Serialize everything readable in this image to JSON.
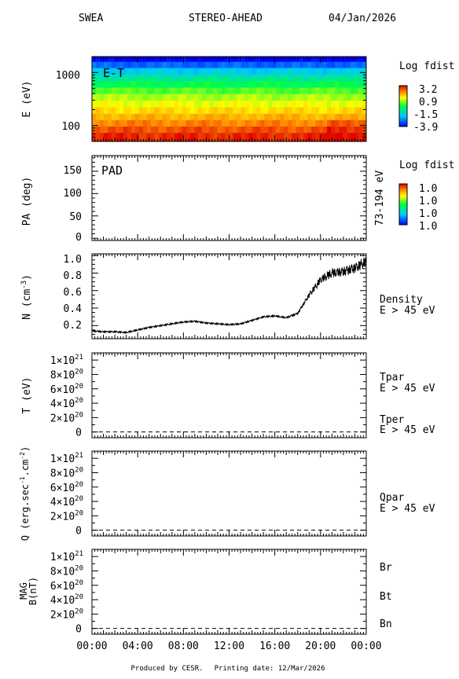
{
  "header": {
    "instrument": "SWEA",
    "spacecraft": "STEREO-AHEAD",
    "date": "04/Jan/2026"
  },
  "footer": {
    "produced_by": "Produced by CESR.",
    "printing_date": "Printing date: 12/Mar/2026"
  },
  "time_axis": {
    "tick_labels": [
      "00:00",
      "04:00",
      "08:00",
      "12:00",
      "16:00",
      "20:00",
      "00:00"
    ]
  },
  "colors": {
    "tper": "#ff0000",
    "bt": "#ff0000",
    "bn": "#0000ff",
    "trace": "#000000"
  },
  "chart_data": [
    {
      "type": "heatmap",
      "panel_label": "E-T",
      "ylabel": "E (eV)",
      "yscale": "log",
      "ylim": [
        50,
        2000
      ],
      "y_tick_labels": [
        "1000",
        "100"
      ],
      "x_range_hours": [
        0,
        24
      ],
      "colorbar": {
        "title": "Log fdist",
        "tick_labels": [
          "3.2",
          "0.9",
          "-1.5",
          "-3.9"
        ],
        "range": [
          -3.9,
          3.2
        ]
      },
      "energy_bins_ev": [
        1800,
        1400,
        1050,
        790,
        600,
        450,
        340,
        255,
        190,
        145,
        110,
        83,
        63
      ],
      "log_fdist": [
        -3.9,
        -3.0,
        -2.0,
        -1.2,
        -0.5,
        0.1,
        0.6,
        1.0,
        1.4,
        1.8,
        2.2,
        2.6,
        2.9
      ]
    },
    {
      "type": "heatmap",
      "panel_label": "PAD",
      "ylabel": "PA (deg)",
      "ylim": [
        0,
        180
      ],
      "y_tick_labels": [
        "150",
        "100",
        "50",
        "0"
      ],
      "right_label": "73-194 eV",
      "colorbar": {
        "title": "Log fdist",
        "tick_labels": [
          "1.0",
          "1.0",
          "1.0",
          "1.0"
        ]
      }
    },
    {
      "type": "line",
      "ylabel": "N (cm",
      "ylabel_sup": "-3",
      "ylabel_close": ")",
      "ylim": [
        0.05,
        1.02
      ],
      "y_tick_labels": [
        "1.0",
        "0.8",
        "0.6",
        "0.4",
        "0.2"
      ],
      "y_tick_values": [
        1.0,
        0.8,
        0.6,
        0.4,
        0.2
      ],
      "x_hours": [
        0,
        1,
        2,
        3,
        4,
        5,
        6,
        7,
        8,
        9,
        10,
        11,
        12,
        13,
        14,
        15,
        16,
        17,
        18,
        19,
        20,
        21,
        22,
        23,
        24
      ],
      "y": [
        0.14,
        0.13,
        0.13,
        0.12,
        0.15,
        0.18,
        0.2,
        0.22,
        0.24,
        0.25,
        0.23,
        0.22,
        0.21,
        0.22,
        0.26,
        0.3,
        0.31,
        0.29,
        0.34,
        0.55,
        0.72,
        0.8,
        0.82,
        0.86,
        0.93
      ],
      "legend": [
        "Density",
        "E > 45 eV"
      ]
    },
    {
      "type": "line",
      "ylabel": "T (eV)",
      "y_tick_mantissas": [
        "1",
        "8",
        "6",
        "4",
        "2"
      ],
      "y_tick_exponents": [
        "21",
        "20",
        "20",
        "20",
        "20"
      ],
      "y_tick_values": [
        1e+21,
        8e+20,
        6e+20,
        4e+20,
        2e+20
      ],
      "y_tick_zero": "0",
      "ylim": [
        -8e+19,
        1.1e+21
      ],
      "series": [
        {
          "name": "Tpar",
          "values": [
            0,
            0
          ]
        },
        {
          "name": "Tper",
          "values": [
            0,
            0
          ]
        }
      ],
      "legend_energy": "E > 45 eV"
    },
    {
      "type": "line",
      "ylabel": "Q (erg.sec",
      "ylabel_sup1": "-1",
      "ylabel_mid": ".cm",
      "ylabel_sup2": "-2",
      "ylabel_close": ")",
      "y_tick_mantissas": [
        "1",
        "8",
        "6",
        "4",
        "2"
      ],
      "y_tick_exponents": [
        "21",
        "20",
        "20",
        "20",
        "20"
      ],
      "y_tick_values": [
        1e+21,
        8e+20,
        6e+20,
        4e+20,
        2e+20
      ],
      "y_tick_zero": "0",
      "ylim": [
        -8e+19,
        1.1e+21
      ],
      "series": [
        {
          "name": "Qpar",
          "values": [
            0,
            0
          ]
        }
      ],
      "legend_energy": "E > 45 eV"
    },
    {
      "type": "line",
      "ylabel_line1": "MAG",
      "ylabel_line2": "B(nT)",
      "y_tick_mantissas": [
        "1",
        "8",
        "6",
        "4",
        "2"
      ],
      "y_tick_exponents": [
        "21",
        "20",
        "20",
        "20",
        "20"
      ],
      "y_tick_values": [
        1e+21,
        8e+20,
        6e+20,
        4e+20,
        2e+20
      ],
      "y_tick_zero": "0",
      "ylim": [
        -8e+19,
        1.1e+21
      ],
      "series": [
        {
          "name": "Br",
          "values": [
            0,
            0
          ]
        },
        {
          "name": "Bt",
          "values": [
            0,
            0
          ]
        },
        {
          "name": "Bn",
          "values": [
            0,
            0
          ]
        }
      ]
    }
  ]
}
